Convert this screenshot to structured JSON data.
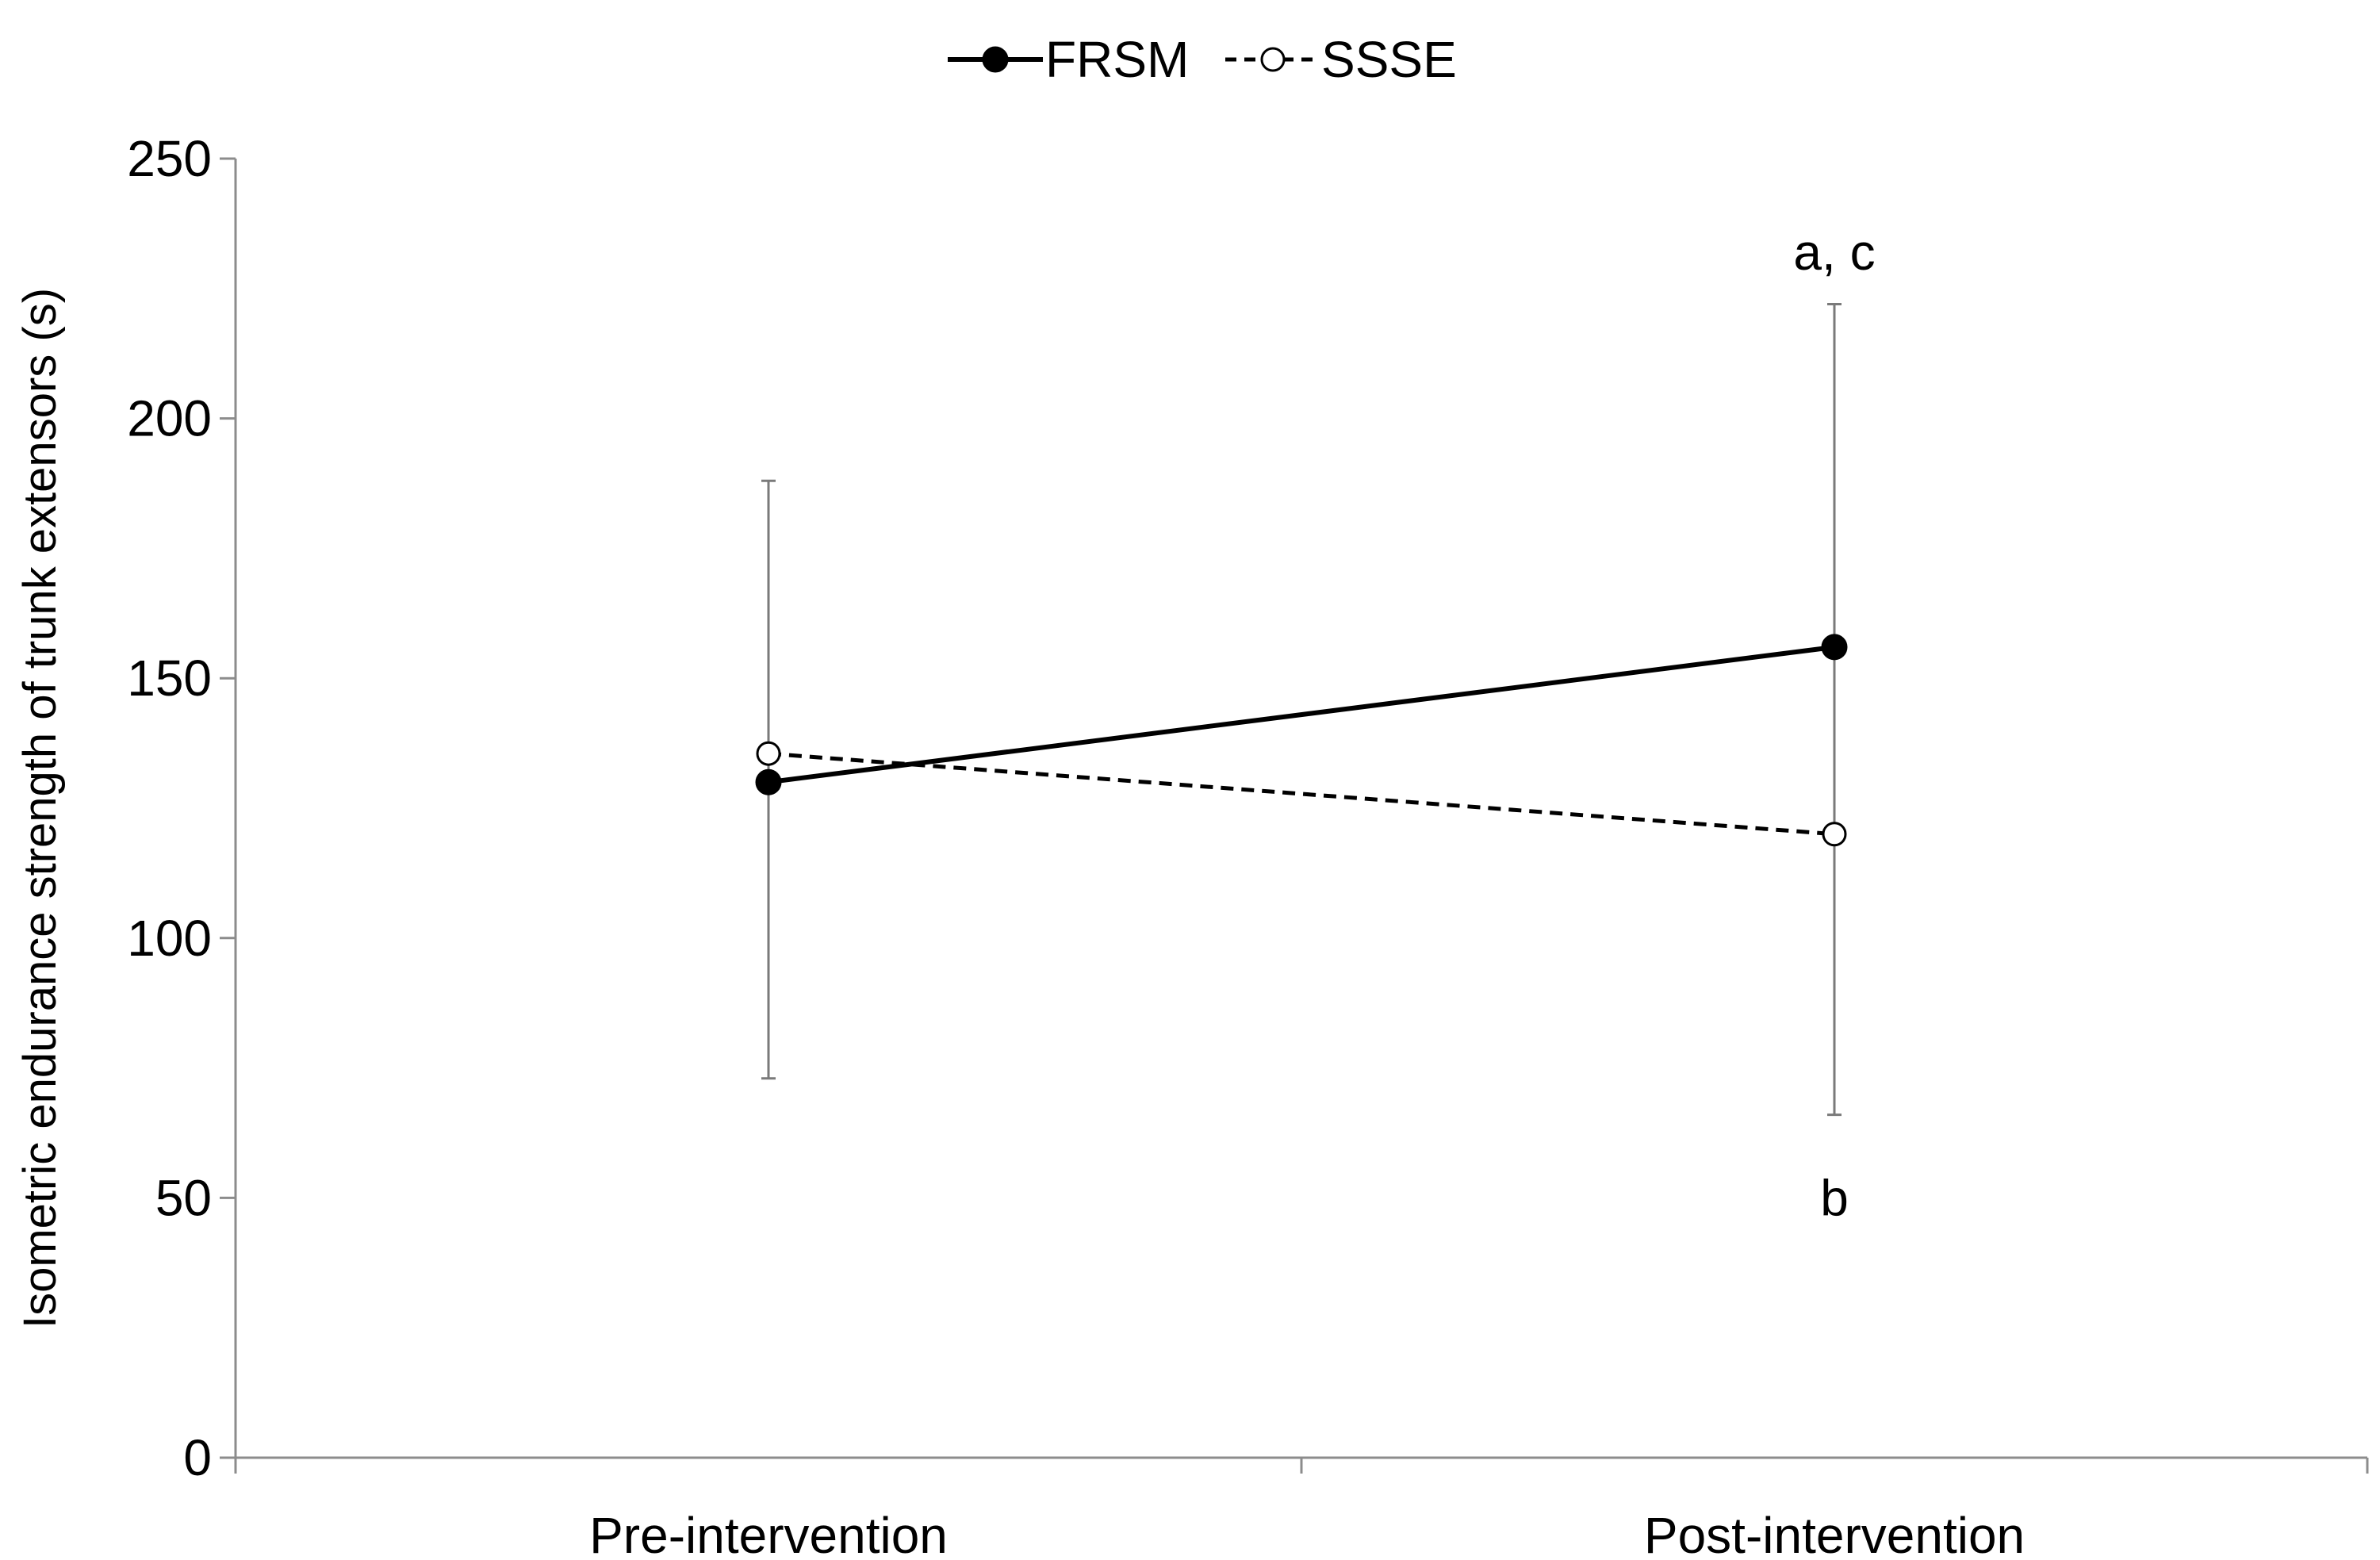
{
  "chart_data": {
    "type": "line",
    "title": "",
    "xlabel": "",
    "ylabel": "Isometric endurance strength of trunk extensors (s)",
    "categories": [
      "Pre-intervention",
      "Post-intervention"
    ],
    "ylim": [
      0,
      250
    ],
    "yticks": [
      0,
      50,
      100,
      150,
      200,
      250
    ],
    "grid": false,
    "legend_position": "top-center",
    "series": [
      {
        "name": "FRSM",
        "values": [
          130,
          156
        ],
        "error_upper": [
          188,
          222
        ],
        "error_lower": [
          73,
          66
        ],
        "line_style": "solid",
        "marker": "filled-circle",
        "color": "#000000"
      },
      {
        "name": "SSSE",
        "values": [
          135.5,
          120
        ],
        "line_style": "dashed",
        "marker": "open-circle",
        "color": "#000000"
      }
    ],
    "annotations": [
      {
        "text": "a, c",
        "category": "Post-intervention",
        "y": 232
      },
      {
        "text": "b",
        "category": "Post-intervention",
        "y": 50
      }
    ]
  }
}
